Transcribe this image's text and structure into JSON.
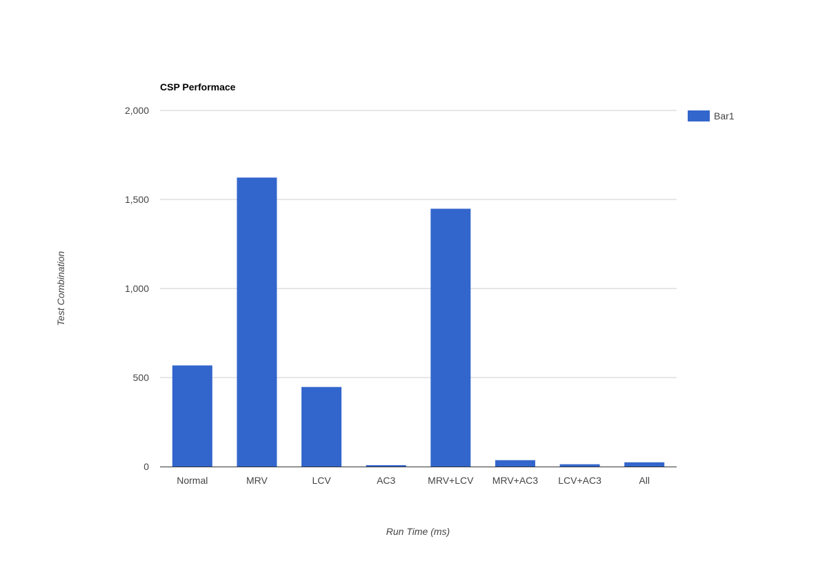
{
  "chart_data": {
    "type": "bar",
    "title": "CSP Performace",
    "xlabel": "Run Time (ms)",
    "ylabel": "Test Combination",
    "categories": [
      "Normal",
      "MRV",
      "LCV",
      "AC3",
      "MRV+LCV",
      "MRV+AC3",
      "LCV+AC3",
      "All"
    ],
    "series": [
      {
        "name": "Bar1",
        "values": [
          568,
          1623,
          447,
          8,
          1448,
          36,
          13,
          24
        ]
      }
    ],
    "ylim": [
      0,
      2000
    ],
    "yticks": [
      0,
      500,
      1000,
      1500,
      2000
    ],
    "ytick_labels": [
      "0",
      "500",
      "1,000",
      "1,500",
      "2,000"
    ],
    "grid": true,
    "legend_position": "right",
    "colors": {
      "bar": "#3366cc",
      "grid": "#cccccc",
      "baseline": "#333333"
    }
  }
}
